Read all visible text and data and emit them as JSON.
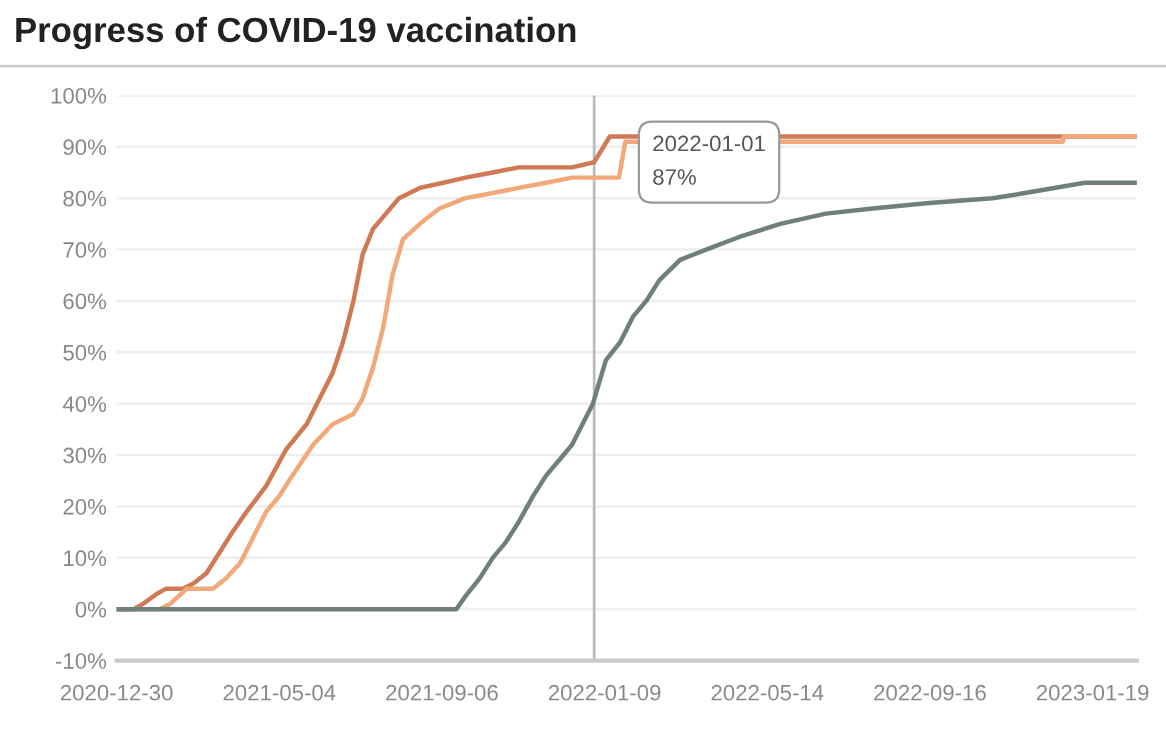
{
  "chart_data": {
    "type": "line",
    "title": "Progress of COVID-19 vaccination",
    "series": [
      {
        "color": "#d07a55",
        "x": [
          "2020-12-30",
          "2021-01-12",
          "2021-01-19",
          "2021-01-30",
          "2021-02-06",
          "2021-02-19",
          "2021-02-27",
          "2021-03-09",
          "2021-03-19",
          "2021-03-29",
          "2021-04-09",
          "2021-04-24",
          "2021-05-09",
          "2021-05-25",
          "2021-06-04",
          "2021-06-14",
          "2021-06-22",
          "2021-06-30",
          "2021-07-07",
          "2021-07-15",
          "2021-07-25",
          "2021-08-04",
          "2021-08-20",
          "2021-09-07",
          "2021-09-24",
          "2021-10-15",
          "2021-11-04",
          "2021-12-15",
          "2022-01-01",
          "2022-01-13",
          "2023-02-22"
        ],
        "values": [
          0,
          0,
          1,
          3,
          4,
          4,
          5,
          7,
          11,
          15,
          19,
          24,
          31,
          36,
          41,
          46,
          52,
          60,
          69,
          74,
          77,
          80,
          82,
          83,
          84,
          85,
          86,
          86,
          87,
          92,
          92
        ]
      },
      {
        "color": "#f2a97a",
        "x": [
          "2020-12-30",
          "2021-02-01",
          "2021-02-09",
          "2021-02-22",
          "2021-03-14",
          "2021-03-24",
          "2021-04-04",
          "2021-04-14",
          "2021-04-24",
          "2021-05-04",
          "2021-05-14",
          "2021-05-30",
          "2021-06-14",
          "2021-06-30",
          "2021-07-07",
          "2021-07-15",
          "2021-07-23",
          "2021-07-30",
          "2021-08-07",
          "2021-08-20",
          "2021-09-04",
          "2021-09-24",
          "2021-10-15",
          "2021-11-04",
          "2021-11-25",
          "2021-12-15",
          "2022-01-20",
          "2022-01-25",
          "2022-12-27",
          "2022-12-28",
          "2023-02-22"
        ],
        "values": [
          0,
          0,
          1,
          4,
          4,
          6,
          9,
          14,
          19,
          22,
          26,
          32,
          36,
          38,
          41,
          47,
          55,
          65,
          72,
          75,
          78,
          80,
          81,
          82,
          83,
          84,
          84,
          91,
          91,
          92,
          92
        ]
      },
      {
        "color": "#6f7f7c",
        "x": [
          "2020-12-30",
          "2021-09-17",
          "2021-09-24",
          "2021-10-05",
          "2021-10-15",
          "2021-10-25",
          "2021-11-04",
          "2021-11-15",
          "2021-11-25",
          "2021-12-05",
          "2021-12-15",
          "2021-12-25",
          "2021-12-31",
          "2022-01-10",
          "2022-01-21",
          "2022-01-31",
          "2022-02-10",
          "2022-02-20",
          "2022-03-08",
          "2022-03-28",
          "2022-04-23",
          "2022-05-24",
          "2022-06-28",
          "2022-08-03",
          "2022-09-13",
          "2022-11-03",
          "2022-11-28",
          "2023-01-13",
          "2023-02-22"
        ],
        "values": [
          0,
          0,
          2.5,
          6,
          10,
          13,
          17,
          22,
          26,
          29,
          32,
          37,
          40,
          48.5,
          52,
          57,
          60,
          64,
          68,
          70,
          72.5,
          75,
          77,
          78,
          79,
          80,
          81,
          83,
          83
        ]
      }
    ],
    "xlim": [
      "2020-12-30",
      "2023-02-22"
    ],
    "xticks": [
      "2020-12-30",
      "2021-05-04",
      "2021-09-06",
      "2022-01-09",
      "2022-05-14",
      "2022-09-16",
      "2023-01-19"
    ],
    "ylim": [
      -10,
      100
    ],
    "yticks": [
      {
        "value": -10,
        "label": "-10%"
      },
      {
        "value": 0,
        "label": "0%"
      },
      {
        "value": 10,
        "label": "10%"
      },
      {
        "value": 20,
        "label": "20%"
      },
      {
        "value": 30,
        "label": "30%"
      },
      {
        "value": 40,
        "label": "40%"
      },
      {
        "value": 50,
        "label": "50%"
      },
      {
        "value": 60,
        "label": "60%"
      },
      {
        "value": 70,
        "label": "70%"
      },
      {
        "value": 80,
        "label": "80%"
      },
      {
        "value": 90,
        "label": "90%"
      },
      {
        "value": 100,
        "label": "100%"
      }
    ],
    "grid": "y",
    "ref_lines": [
      {
        "axis": "x",
        "value": "2022-01-01",
        "color": "#bbbbbb"
      }
    ],
    "annotations": [
      "2022-01-01",
      "87%"
    ]
  }
}
